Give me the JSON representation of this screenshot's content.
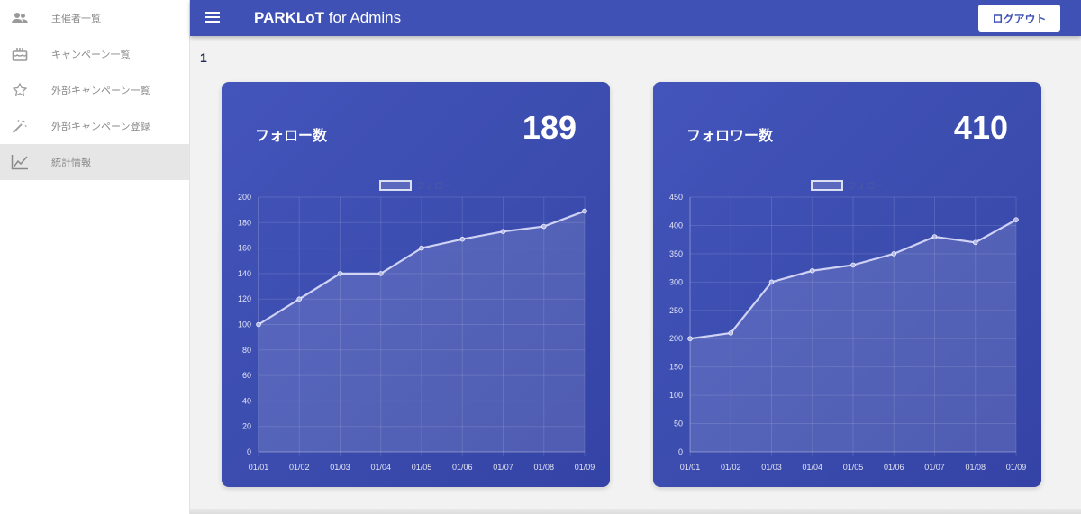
{
  "app": {
    "title_brand": "PARKLoT",
    "title_suffix": " for Admins",
    "logout_label": "ログアウト",
    "page_number": "1"
  },
  "sidebar": {
    "items": [
      {
        "label": "主催者一覧",
        "icon": "people-icon",
        "active": false
      },
      {
        "label": "キャンペーン一覧",
        "icon": "cake-icon",
        "active": false
      },
      {
        "label": "外部キャンペーン一覧",
        "icon": "star-icon",
        "active": false
      },
      {
        "label": "外部キャンペーン登録",
        "icon": "magic-wand-icon",
        "active": false
      },
      {
        "label": "統計情報",
        "icon": "line-chart-icon",
        "active": true
      }
    ]
  },
  "cards": [
    {
      "title": "フォロー数",
      "value": "189"
    },
    {
      "title": "フォロワー数",
      "value": "410"
    }
  ],
  "colors": {
    "primary": "#3f51b5",
    "sidebar_bg": "#ffffff",
    "page_bg": "#f2f2f2"
  },
  "chart_data": [
    {
      "type": "line",
      "legend": [
        "フォロー"
      ],
      "legend_position": "top",
      "categories": [
        "01/01",
        "01/02",
        "01/03",
        "01/04",
        "01/05",
        "01/06",
        "01/07",
        "01/08",
        "01/09"
      ],
      "series": [
        {
          "name": "フォロー",
          "values": [
            100,
            120,
            140,
            140,
            160,
            167,
            173,
            177,
            189
          ]
        }
      ],
      "ylim": [
        0,
        200
      ],
      "yticks": [
        0,
        20,
        40,
        60,
        80,
        100,
        120,
        140,
        160,
        180,
        200
      ],
      "grid": true,
      "filled": true
    },
    {
      "type": "line",
      "legend": [
        "フォロー"
      ],
      "legend_position": "top",
      "categories": [
        "01/01",
        "01/02",
        "01/03",
        "01/04",
        "01/05",
        "01/06",
        "01/07",
        "01/08",
        "01/09"
      ],
      "series": [
        {
          "name": "フォロー",
          "values": [
            200,
            210,
            300,
            320,
            330,
            350,
            380,
            370,
            410
          ]
        }
      ],
      "ylim": [
        0,
        450
      ],
      "yticks": [
        0,
        50,
        100,
        150,
        200,
        250,
        300,
        350,
        400,
        450
      ],
      "grid": true,
      "filled": true
    }
  ]
}
